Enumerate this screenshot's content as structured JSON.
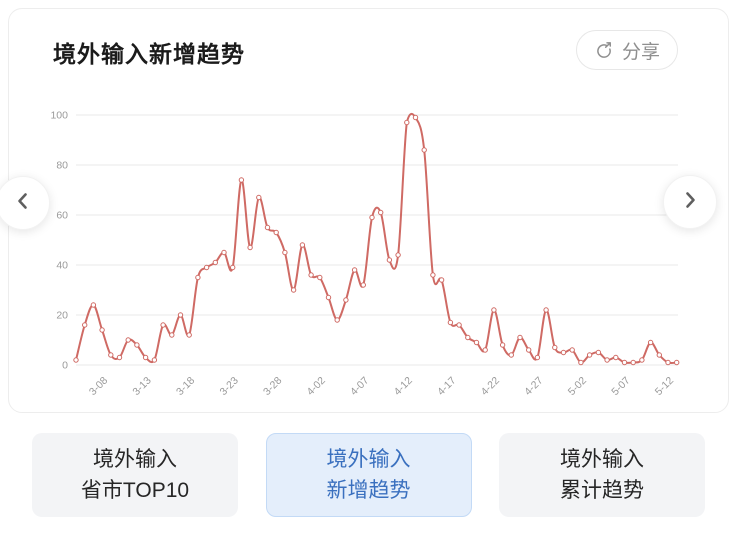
{
  "header": {
    "title": "境外输入新增趋势",
    "share_label": "分享"
  },
  "icons": {
    "share": "circle-arrow-out-top-right",
    "prev": "chevron-left",
    "next": "chevron-right"
  },
  "chart_data": {
    "type": "line",
    "title": "境外输入新增趋势",
    "line_color": "#cf6a64",
    "marker": "open-circle",
    "grid": true,
    "grid_color": "#e9e9e9",
    "axis_label_color": "#9a9a9a",
    "ylim": [
      0,
      100
    ],
    "y_ticks": [
      0,
      20,
      40,
      60,
      80,
      100
    ],
    "x": [
      "3-05",
      "3-06",
      "3-07",
      "3-08",
      "3-09",
      "3-10",
      "3-11",
      "3-12",
      "3-13",
      "3-14",
      "3-15",
      "3-16",
      "3-17",
      "3-18",
      "3-19",
      "3-20",
      "3-21",
      "3-22",
      "3-23",
      "3-24",
      "3-25",
      "3-26",
      "3-27",
      "3-28",
      "3-29",
      "3-30",
      "3-31",
      "4-01",
      "4-02",
      "4-03",
      "4-04",
      "4-05",
      "4-06",
      "4-07",
      "4-08",
      "4-09",
      "4-10",
      "4-11",
      "4-12",
      "4-13",
      "4-14",
      "4-15",
      "4-16",
      "4-17",
      "4-18",
      "4-19",
      "4-20",
      "4-21",
      "4-22",
      "4-23",
      "4-24",
      "4-25",
      "4-26",
      "4-27",
      "4-28",
      "4-29",
      "4-30",
      "5-01",
      "5-02",
      "5-03",
      "5-04",
      "5-05",
      "5-06",
      "5-07",
      "5-08",
      "5-09",
      "5-10",
      "5-11",
      "5-12",
      "5-13"
    ],
    "values": [
      2,
      16,
      24,
      14,
      4,
      3,
      10,
      8,
      3,
      2,
      16,
      12,
      20,
      12,
      35,
      39,
      41,
      45,
      39,
      74,
      47,
      67,
      55,
      53,
      45,
      30,
      48,
      36,
      35,
      27,
      18,
      26,
      38,
      32,
      59,
      61,
      42,
      44,
      97,
      99,
      86,
      36,
      34,
      17,
      16,
      11,
      9,
      6,
      22,
      8,
      4,
      11,
      6,
      3,
      22,
      7,
      5,
      6,
      1,
      4,
      5,
      2,
      3,
      1,
      1,
      2,
      9,
      4,
      1,
      1
    ],
    "x_ticks": [
      {
        "i": 3,
        "label": "3-08"
      },
      {
        "i": 8,
        "label": "3-13"
      },
      {
        "i": 13,
        "label": "3-18"
      },
      {
        "i": 18,
        "label": "3-23"
      },
      {
        "i": 23,
        "label": "3-28"
      },
      {
        "i": 28,
        "label": "4-02"
      },
      {
        "i": 33,
        "label": "4-07"
      },
      {
        "i": 38,
        "label": "4-12"
      },
      {
        "i": 43,
        "label": "4-17"
      },
      {
        "i": 48,
        "label": "4-22"
      },
      {
        "i": 53,
        "label": "4-27"
      },
      {
        "i": 58,
        "label": "5-02"
      },
      {
        "i": 63,
        "label": "5-07"
      },
      {
        "i": 68,
        "label": "5-12"
      }
    ]
  },
  "tabs": [
    {
      "line1": "境外输入",
      "line2": "省市TOP10",
      "active": false
    },
    {
      "line1": "境外输入",
      "line2": "新增趋势",
      "active": true
    },
    {
      "line1": "境外输入",
      "line2": "累计趋势",
      "active": false
    }
  ]
}
